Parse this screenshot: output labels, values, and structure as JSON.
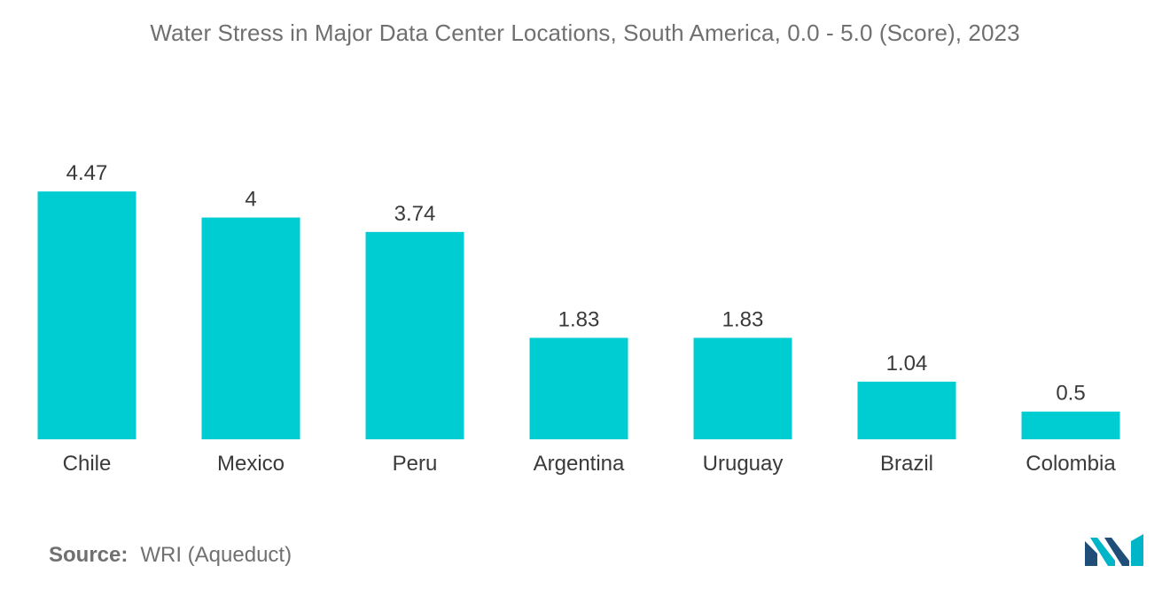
{
  "chart_data": {
    "type": "bar",
    "title": "Water Stress in Major Data Center Locations, South America, 0.0 - 5.0 (Score), 2023",
    "categories": [
      "Chile",
      "Mexico",
      "Peru",
      "Argentina",
      "Uruguay",
      "Brazil",
      "Colombia"
    ],
    "values": [
      4.47,
      4,
      3.74,
      1.83,
      1.83,
      1.04,
      0.5
    ],
    "value_labels": [
      "4.47",
      "4",
      "3.74",
      "1.83",
      "1.83",
      "1.04",
      "0.5"
    ],
    "xlabel": "",
    "ylabel": "",
    "ylim": [
      0,
      5
    ],
    "grid": false,
    "bar_color": "#00cdd1"
  },
  "source": {
    "label": "Source:",
    "text": "WRI (Aqueduct)"
  },
  "logo": {
    "icon": "mordor-logo-icon",
    "colors": [
      "#1f4e79",
      "#00b5c8"
    ]
  }
}
